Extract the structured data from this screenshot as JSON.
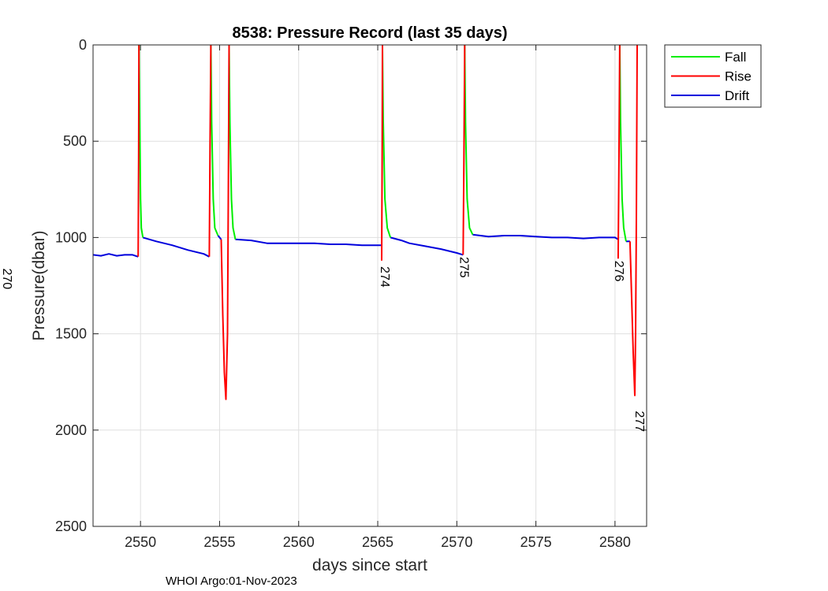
{
  "chart_data": {
    "type": "line",
    "title": "8538: Pressure Record (last 35 days)",
    "xlabel": "days since start",
    "ylabel": "Pressure(dbar)",
    "xlim": [
      2547,
      2582
    ],
    "ylim": [
      0,
      2500
    ],
    "y_reversed": true,
    "grid": true,
    "xticks": [
      2550,
      2555,
      2560,
      2565,
      2570,
      2575,
      2580
    ],
    "yticks": [
      0,
      500,
      1000,
      1500,
      2000,
      2500
    ],
    "legend": {
      "placement": "outside-top-right",
      "entries": [
        "Fall",
        "Rise",
        "Drift"
      ]
    },
    "colors": {
      "Fall": "#00ee00",
      "Rise": "#ff0000",
      "Drift": "#0000dd"
    },
    "series": [
      {
        "name": "Fall",
        "segments": [
          [
            [
              2549.9,
              0
            ],
            [
              2549.95,
              400
            ],
            [
              2550.0,
              800
            ],
            [
              2550.05,
              950
            ],
            [
              2550.15,
              1000
            ]
          ],
          [
            [
              2554.45,
              0
            ],
            [
              2554.5,
              400
            ],
            [
              2554.6,
              800
            ],
            [
              2554.7,
              950
            ],
            [
              2554.9,
              990
            ]
          ],
          [
            [
              2555.6,
              0
            ],
            [
              2555.65,
              400
            ],
            [
              2555.75,
              800
            ],
            [
              2555.85,
              950
            ],
            [
              2556.0,
              1010
            ]
          ],
          [
            [
              2565.3,
              0
            ],
            [
              2565.35,
              400
            ],
            [
              2565.45,
              800
            ],
            [
              2565.6,
              950
            ],
            [
              2565.8,
              1000
            ]
          ],
          [
            [
              2570.5,
              0
            ],
            [
              2570.55,
              400
            ],
            [
              2570.65,
              800
            ],
            [
              2570.8,
              950
            ],
            [
              2571.0,
              985
            ]
          ],
          [
            [
              2580.3,
              0
            ],
            [
              2580.35,
              400
            ],
            [
              2580.45,
              800
            ],
            [
              2580.55,
              950
            ],
            [
              2580.7,
              1020
            ]
          ]
        ]
      },
      {
        "name": "Rise",
        "segments": [
          [
            [
              2549.85,
              1100
            ],
            [
              2549.88,
              600
            ],
            [
              2549.9,
              0
            ]
          ],
          [
            [
              2554.35,
              1100
            ],
            [
              2554.4,
              500
            ],
            [
              2554.45,
              0
            ]
          ],
          [
            [
              2555.1,
              1010
            ],
            [
              2555.2,
              1400
            ],
            [
              2555.3,
              1700
            ],
            [
              2555.4,
              1840
            ],
            [
              2555.5,
              1500
            ],
            [
              2555.55,
              800
            ],
            [
              2555.6,
              0
            ]
          ],
          [
            [
              2565.25,
              1120
            ],
            [
              2565.28,
              600
            ],
            [
              2565.3,
              0
            ]
          ],
          [
            [
              2570.4,
              1090
            ],
            [
              2570.45,
              600
            ],
            [
              2570.5,
              0
            ]
          ],
          [
            [
              2580.2,
              1110
            ],
            [
              2580.25,
              600
            ],
            [
              2580.3,
              0
            ]
          ],
          [
            [
              2580.95,
              1020
            ],
            [
              2581.05,
              1300
            ],
            [
              2581.15,
              1600
            ],
            [
              2581.25,
              1820
            ],
            [
              2581.3,
              1500
            ],
            [
              2581.35,
              900
            ],
            [
              2581.4,
              0
            ]
          ]
        ]
      },
      {
        "name": "Drift",
        "segments": [
          [
            [
              2547.0,
              1090
            ],
            [
              2547.5,
              1095
            ],
            [
              2548.0,
              1085
            ],
            [
              2548.5,
              1095
            ],
            [
              2549.0,
              1090
            ],
            [
              2549.5,
              1090
            ],
            [
              2549.85,
              1100
            ]
          ],
          [
            [
              2550.15,
              1000
            ],
            [
              2551.0,
              1020
            ],
            [
              2552.0,
              1040
            ],
            [
              2553.0,
              1065
            ],
            [
              2554.0,
              1085
            ],
            [
              2554.35,
              1100
            ]
          ],
          [
            [
              2554.9,
              990
            ],
            [
              2555.1,
              1010
            ]
          ],
          [
            [
              2556.0,
              1010
            ],
            [
              2557.0,
              1015
            ],
            [
              2558.0,
              1030
            ],
            [
              2559.0,
              1030
            ],
            [
              2560.0,
              1030
            ],
            [
              2561.0,
              1030
            ],
            [
              2562.0,
              1035
            ],
            [
              2563.0,
              1035
            ],
            [
              2564.0,
              1040
            ],
            [
              2565.25,
              1040
            ]
          ],
          [
            [
              2565.8,
              1000
            ],
            [
              2566.5,
              1015
            ],
            [
              2567.0,
              1030
            ],
            [
              2568.0,
              1045
            ],
            [
              2569.0,
              1060
            ],
            [
              2570.0,
              1080
            ],
            [
              2570.4,
              1090
            ]
          ],
          [
            [
              2571.0,
              985
            ],
            [
              2572.0,
              995
            ],
            [
              2573.0,
              990
            ],
            [
              2574.0,
              990
            ],
            [
              2575.0,
              995
            ],
            [
              2576.0,
              1000
            ],
            [
              2577.0,
              1000
            ],
            [
              2578.0,
              1005
            ],
            [
              2579.0,
              1000
            ],
            [
              2580.0,
              1000
            ],
            [
              2580.2,
              1010
            ]
          ],
          [
            [
              2580.7,
              1020
            ],
            [
              2580.95,
              1020
            ]
          ]
        ]
      }
    ],
    "annotations": [
      {
        "text": "274",
        "x": 2565.2,
        "y": 1150
      },
      {
        "text": "275",
        "x": 2570.2,
        "y": 1100
      },
      {
        "text": "276",
        "x": 2580.0,
        "y": 1120
      },
      {
        "text": "277",
        "x": 2581.3,
        "y": 1900
      },
      {
        "text": "270",
        "x": 2547.0,
        "y": 1160
      }
    ]
  },
  "footer": "WHOI Argo:01-Nov-2023"
}
